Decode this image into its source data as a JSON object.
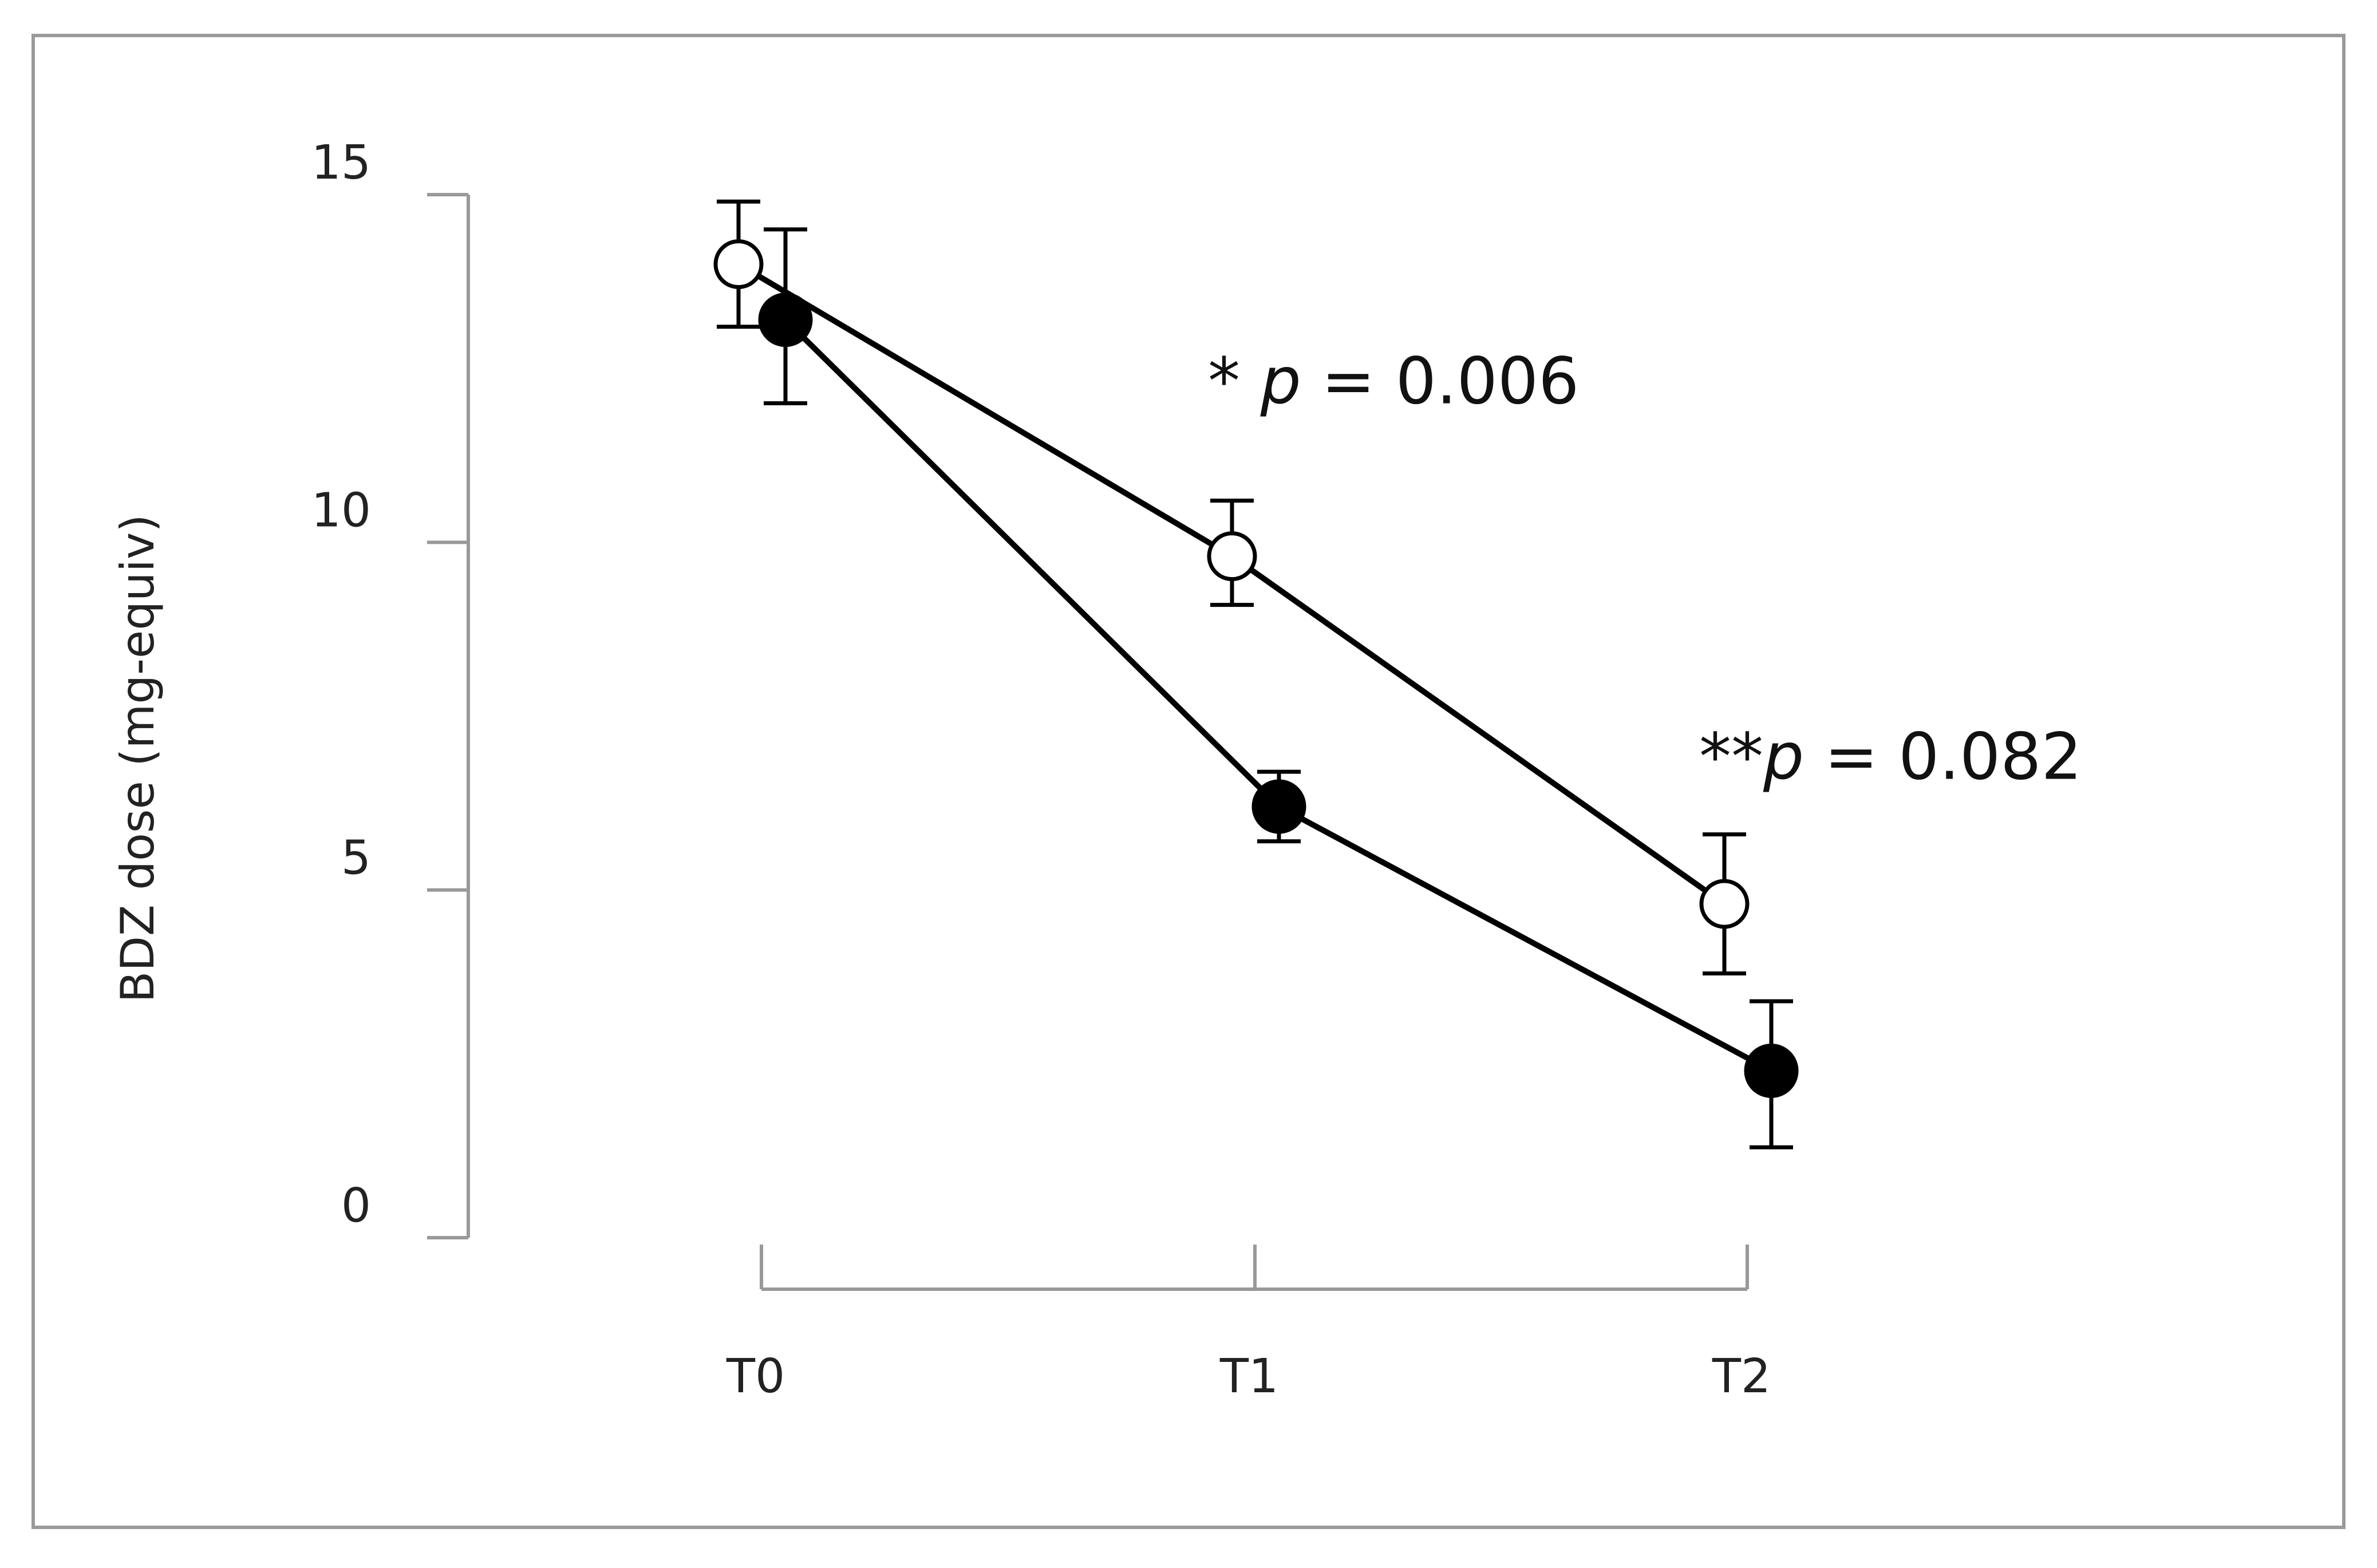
{
  "chart_data": {
    "type": "line",
    "title": "",
    "xlabel": "",
    "ylabel": "BDZ dose (mg-equiv)",
    "categories": [
      "T0",
      "T1",
      "T2"
    ],
    "ylim": [
      0,
      15
    ],
    "yticks": [
      "0",
      "5",
      "10",
      "15"
    ],
    "grid": false,
    "legend": "none",
    "series": [
      {
        "marker": "open-circle",
        "values": [
          14.0,
          9.8,
          4.8
        ],
        "error_low": [
          13.1,
          9.1,
          3.8
        ],
        "error_high": [
          14.9,
          10.6,
          5.8
        ]
      },
      {
        "marker": "filled-circle",
        "values": [
          13.2,
          6.2,
          2.4
        ],
        "error_low": [
          12.0,
          5.7,
          1.3
        ],
        "error_high": [
          14.5,
          6.7,
          3.4
        ]
      }
    ],
    "annotations": [
      {
        "category": "T1",
        "y": 12.0,
        "stars": "*",
        "p": "p",
        "rest": " = 0.006"
      },
      {
        "category": "T2",
        "y": 6.6,
        "stars": "**",
        "p": "p",
        "rest": " = 0.082"
      }
    ],
    "colors": {
      "axis": "#999999",
      "line": "#000000",
      "frame": "#9a9a9a"
    }
  }
}
